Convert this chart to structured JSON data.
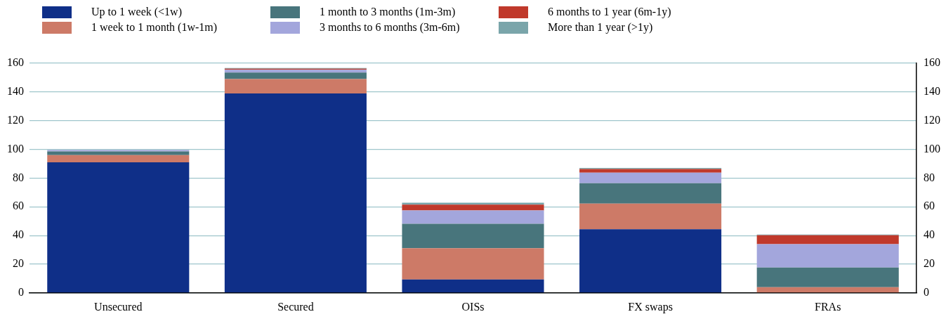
{
  "chart_data": {
    "type": "bar",
    "stacked": true,
    "categories": [
      "Unsecured",
      "Secured",
      "OISs",
      "FX swaps",
      "FRAs"
    ],
    "series": [
      {
        "name": "Up to 1 week (<1w)",
        "color": "#0f2f88",
        "values": [
          91,
          139,
          9.3,
          44.3,
          null
        ]
      },
      {
        "name": "1 week to 1 month (1w-1m)",
        "color": "#cd7a67",
        "values": [
          5,
          10,
          21.8,
          17.9,
          4
        ]
      },
      {
        "name": "1 month to 3 months (1m-3m)",
        "color": "#48757c",
        "values": [
          2.5,
          4.5,
          17,
          14.2,
          13.6
        ]
      },
      {
        "name": "3 months to 6 months (3m-6m)",
        "color": "#a3a6dc",
        "values": [
          1,
          2,
          9.3,
          7.3,
          16.3
        ]
      },
      {
        "name": "6 months to 1 year (6m-1y)",
        "color": "#c0392b",
        "values": [
          null,
          0.7,
          4.1,
          2.6,
          6.3
        ]
      },
      {
        "name": "More than 1 year (>1y)",
        "color": "#7aa5aa",
        "values": [
          0.2,
          0.5,
          1.3,
          0.7,
          0.5
        ]
      }
    ],
    "ylim": [
      0,
      160
    ],
    "yticks": [
      0,
      20,
      40,
      60,
      80,
      100,
      120,
      140,
      160
    ],
    "y2lim": [
      0,
      160
    ],
    "y2ticks": [
      0,
      20,
      40,
      60,
      80,
      100,
      120,
      140,
      160
    ],
    "grid": "y",
    "legend": "top"
  }
}
